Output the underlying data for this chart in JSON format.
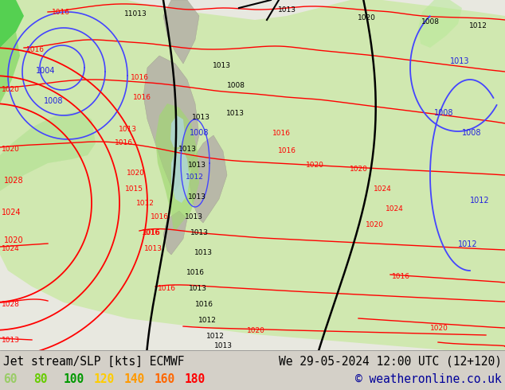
{
  "title_left": "Jet stream/SLP [kts] ECMWF",
  "title_right": "We 29-05-2024 12:00 UTC (12+120)",
  "copyright": "© weatheronline.co.uk",
  "legend_values": [
    "60",
    "80",
    "100",
    "120",
    "140",
    "160",
    "180"
  ],
  "legend_colors": [
    "#99cc66",
    "#66cc00",
    "#009900",
    "#ffcc00",
    "#ff9900",
    "#ff6600",
    "#ff0000"
  ],
  "bg_color": "#d4d0c8",
  "map_bg": "#f0f0e8",
  "land_light": "#c8e0b0",
  "land_medium": "#a0cc80",
  "land_dark": "#70b040",
  "ocean_color": "#cce8f0",
  "fig_width": 6.34,
  "fig_height": 4.9,
  "dpi": 100,
  "bottom_bg": "#d4d0c8",
  "title_fontsize": 10.5,
  "legend_fontsize": 10.5,
  "copyright_fontsize": 10.5
}
